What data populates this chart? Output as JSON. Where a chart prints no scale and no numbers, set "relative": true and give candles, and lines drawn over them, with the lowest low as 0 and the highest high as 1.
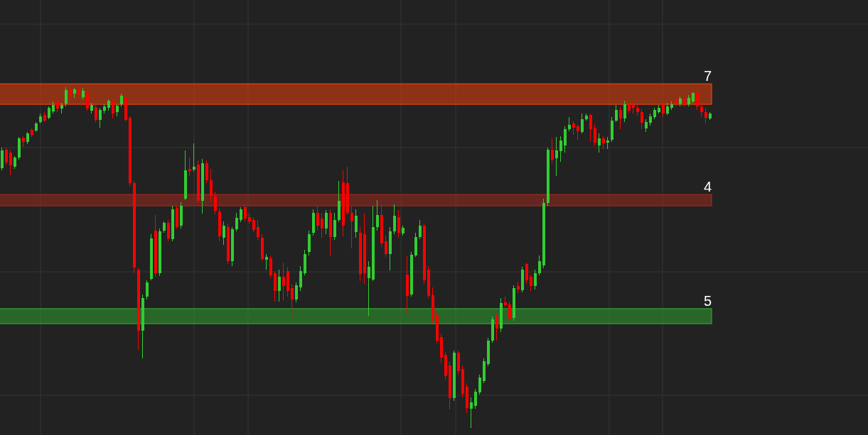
{
  "chart_data": {
    "type": "candlestick",
    "relative": true,
    "grid": true,
    "categories": [
      null,
      null,
      null,
      null,
      null,
      null,
      null,
      null,
      null,
      null,
      null,
      null,
      null,
      null,
      null,
      null,
      null,
      null,
      null,
      null,
      null,
      null,
      null,
      null,
      null,
      null,
      null,
      null,
      null,
      null,
      null,
      null,
      null,
      null,
      null,
      null,
      null,
      null,
      null,
      null,
      null,
      null,
      null,
      null,
      null,
      null,
      null,
      null,
      null,
      null,
      null,
      null,
      null,
      null,
      null,
      null,
      null,
      null,
      null,
      null,
      null,
      null,
      null,
      null,
      null,
      null,
      null,
      null,
      null,
      null,
      null,
      null,
      null,
      null,
      null,
      null,
      null,
      null,
      null,
      null,
      null,
      null,
      null,
      null,
      null,
      null,
      null,
      null,
      null,
      null,
      null,
      null,
      null,
      null,
      null,
      null,
      null,
      null,
      null,
      null,
      null,
      null,
      null,
      null,
      null,
      null,
      null,
      null,
      null,
      null,
      null,
      null,
      null,
      null,
      null,
      null,
      null,
      null,
      null,
      null,
      null,
      null,
      null,
      null,
      null,
      null,
      null,
      null,
      null,
      null,
      null,
      null,
      null,
      null,
      null,
      null,
      null,
      null,
      null,
      null,
      null,
      null,
      null,
      null,
      null,
      null,
      null,
      null,
      null,
      null,
      null,
      null,
      null,
      null,
      null,
      null,
      null,
      null,
      null,
      null,
      null,
      null,
      null,
      null,
      null,
      null,
      null
    ],
    "ohlc": [
      [
        0.763,
        0.823,
        0.756,
        0.815
      ],
      [
        0.817,
        0.823,
        0.773,
        0.779
      ],
      [
        0.808,
        0.815,
        0.742,
        0.771
      ],
      [
        0.767,
        0.798,
        0.76,
        0.794
      ],
      [
        0.794,
        0.854,
        0.788,
        0.85
      ],
      [
        0.852,
        0.856,
        0.825,
        0.84
      ],
      [
        0.84,
        0.869,
        0.833,
        0.865
      ],
      [
        0.875,
        0.879,
        0.854,
        0.86
      ],
      [
        0.873,
        0.898,
        0.869,
        0.894
      ],
      [
        0.898,
        0.923,
        0.894,
        0.915
      ],
      [
        0.919,
        0.927,
        0.898,
        0.902
      ],
      [
        0.91,
        0.944,
        0.906,
        0.94
      ],
      [
        0.929,
        0.958,
        0.923,
        0.948
      ],
      [
        0.958,
        0.965,
        0.927,
        0.938
      ],
      [
        0.938,
        0.954,
        0.923,
        0.948
      ],
      [
        0.952,
        1,
        0.944,
        0.992
      ],
      [
        0.992,
        0.998,
        0.965,
        0.977
      ],
      [
        0.981,
        0.998,
        0.969,
        0.994
      ],
      [
        0.992,
        0.996,
        0.973,
        0.983
      ],
      [
        0.971,
        0.998,
        0.965,
        0.99
      ],
      [
        0.983,
        0.99,
        0.931,
        0.938
      ],
      [
        0.931,
        0.954,
        0.923,
        0.948
      ],
      [
        0.942,
        0.948,
        0.898,
        0.904
      ],
      [
        0.904,
        0.94,
        0.881,
        0.933
      ],
      [
        0.931,
        0.95,
        0.923,
        0.944
      ],
      [
        0.94,
        0.965,
        0.931,
        0.96
      ],
      [
        0.958,
        0.963,
        0.908,
        0.923
      ],
      [
        0.927,
        0.95,
        0.915,
        0.946
      ],
      [
        0.95,
        0.981,
        0.944,
        0.975
      ],
      [
        0.971,
        0.979,
        0.9,
        0.904
      ],
      [
        0.91,
        0.915,
        0.71,
        0.719
      ],
      [
        0.719,
        0.725,
        0.454,
        0.471
      ],
      [
        0.465,
        0.469,
        0.229,
        0.285
      ],
      [
        0.285,
        0.392,
        0.204,
        0.381
      ],
      [
        0.385,
        0.433,
        0.377,
        0.427
      ],
      [
        0.438,
        0.569,
        0.433,
        0.556
      ],
      [
        0.579,
        0.625,
        0.444,
        0.454
      ],
      [
        0.454,
        0.585,
        0.446,
        0.577
      ],
      [
        0.579,
        0.606,
        0.573,
        0.602
      ],
      [
        0.602,
        0.61,
        0.548,
        0.556
      ],
      [
        0.554,
        0.652,
        0.548,
        0.642
      ],
      [
        0.646,
        0.652,
        0.585,
        0.59
      ],
      [
        0.594,
        0.663,
        0.585,
        0.652
      ],
      [
        0.673,
        0.815,
        0.669,
        0.756
      ],
      [
        0.76,
        0.794,
        0.74,
        0.754
      ],
      [
        0.758,
        0.835,
        0.752,
        0.767
      ],
      [
        0.773,
        0.785,
        0.66,
        0.667
      ],
      [
        0.667,
        0.79,
        0.629,
        0.777
      ],
      [
        0.777,
        0.785,
        0.719,
        0.727
      ],
      [
        0.727,
        0.76,
        0.665,
        0.681
      ],
      [
        0.681,
        0.694,
        0.627,
        0.638
      ],
      [
        0.635,
        0.644,
        0.548,
        0.563
      ],
      [
        0.558,
        0.606,
        0.538,
        0.594
      ],
      [
        0.59,
        0.6,
        0.481,
        0.49
      ],
      [
        0.49,
        0.59,
        0.475,
        0.583
      ],
      [
        0.583,
        0.631,
        0.577,
        0.617
      ],
      [
        0.61,
        0.648,
        0.604,
        0.642
      ],
      [
        0.648,
        0.656,
        0.606,
        0.615
      ],
      [
        0.619,
        0.631,
        0.6,
        0.606
      ],
      [
        0.61,
        0.619,
        0.575,
        0.581
      ],
      [
        0.59,
        0.61,
        0.552,
        0.56
      ],
      [
        0.558,
        0.569,
        0.49,
        0.496
      ],
      [
        0.494,
        0.51,
        0.465,
        0.502
      ],
      [
        0.498,
        0.506,
        0.44,
        0.448
      ],
      [
        0.454,
        0.46,
        0.371,
        0.402
      ],
      [
        0.402,
        0.465,
        0.371,
        0.444
      ],
      [
        0.444,
        0.485,
        0.375,
        0.417
      ],
      [
        0.46,
        0.473,
        0.385,
        0.402
      ],
      [
        0.41,
        0.423,
        0.323,
        0.377
      ],
      [
        0.377,
        0.427,
        0.369,
        0.419
      ],
      [
        0.413,
        0.475,
        0.402,
        0.46
      ],
      [
        0.454,
        0.523,
        0.448,
        0.51
      ],
      [
        0.517,
        0.579,
        0.506,
        0.569
      ],
      [
        0.573,
        0.642,
        0.565,
        0.631
      ],
      [
        0.631,
        0.652,
        0.581,
        0.594
      ],
      [
        0.615,
        0.631,
        0.558,
        0.585
      ],
      [
        0.585,
        0.64,
        0.569,
        0.631
      ],
      [
        0.631,
        0.642,
        0.506,
        0.56
      ],
      [
        0.56,
        0.631,
        0.552,
        0.61
      ],
      [
        0.61,
        0.725,
        0.604,
        0.667
      ],
      [
        0.721,
        0.756,
        0.563,
        0.594
      ],
      [
        0.719,
        0.767,
        0.625,
        0.631
      ],
      [
        0.631,
        0.652,
        0.527,
        0.606
      ],
      [
        0.575,
        0.642,
        0.558,
        0.623
      ],
      [
        0.573,
        0.59,
        0.431,
        0.452
      ],
      [
        0.569,
        0.631,
        0.423,
        0.454
      ],
      [
        0.44,
        0.49,
        0.329,
        0.473
      ],
      [
        0.435,
        0.652,
        0.431,
        0.59
      ],
      [
        0.59,
        0.669,
        0.579,
        0.625
      ],
      [
        0.625,
        0.656,
        0.531,
        0.542
      ],
      [
        0.548,
        0.565,
        0.502,
        0.51
      ],
      [
        0.51,
        0.59,
        0.463,
        0.577
      ],
      [
        0.577,
        0.656,
        0.569,
        0.623
      ],
      [
        0.619,
        0.64,
        0.558,
        0.573
      ],
      [
        0.571,
        0.594,
        0.565,
        0.588
      ],
      [
        0.45,
        0.504,
        0.335,
        0.388
      ],
      [
        0.392,
        0.517,
        0.385,
        0.508
      ],
      [
        0.506,
        0.573,
        0.502,
        0.56
      ],
      [
        0.56,
        0.61,
        0.554,
        0.594
      ],
      [
        0.594,
        0.6,
        0.423,
        0.433
      ],
      [
        0.465,
        0.475,
        0.381,
        0.388
      ],
      [
        0.39,
        0.413,
        0.308,
        0.321
      ],
      [
        0.331,
        0.34,
        0.248,
        0.256
      ],
      [
        0.267,
        0.277,
        0.19,
        0.206
      ],
      [
        0.215,
        0.223,
        0.142,
        0.152
      ],
      [
        0.183,
        0.194,
        0.054,
        0.088
      ],
      [
        0.088,
        0.227,
        0.079,
        0.221
      ],
      [
        0.221,
        0.227,
        0.156,
        0.167
      ],
      [
        0.173,
        0.183,
        0.09,
        0.1
      ],
      [
        0.121,
        0.131,
        0.044,
        0.058
      ],
      [
        0.056,
        0.09,
        0,
        0.075
      ],
      [
        0.065,
        0.115,
        0.056,
        0.106
      ],
      [
        0.104,
        0.156,
        0.098,
        0.148
      ],
      [
        0.138,
        0.204,
        0.131,
        0.196
      ],
      [
        0.188,
        0.265,
        0.181,
        0.256
      ],
      [
        0.256,
        0.327,
        0.25,
        0.319
      ],
      [
        0.323,
        0.335,
        0.256,
        0.292
      ],
      [
        0.292,
        0.381,
        0.281,
        0.367
      ],
      [
        0.369,
        0.385,
        0.354,
        0.36
      ],
      [
        0.363,
        0.371,
        0.308,
        0.321
      ],
      [
        0.323,
        0.419,
        0.315,
        0.41
      ],
      [
        0.417,
        0.429,
        0.396,
        0.406
      ],
      [
        0.404,
        0.473,
        0.398,
        0.465
      ],
      [
        0.481,
        0.485,
        0.423,
        0.433
      ],
      [
        0.444,
        0.45,
        0.402,
        0.417
      ],
      [
        0.417,
        0.465,
        0.406,
        0.454
      ],
      [
        0.454,
        0.506,
        0.448,
        0.49
      ],
      [
        0.477,
        0.673,
        0.469,
        0.66
      ],
      [
        0.66,
        0.823,
        0.652,
        0.817
      ],
      [
        0.817,
        0.85,
        0.777,
        0.788
      ],
      [
        0.792,
        0.854,
        0.74,
        0.815
      ],
      [
        0.813,
        0.856,
        0.781,
        0.844
      ],
      [
        0.829,
        0.885,
        0.808,
        0.877
      ],
      [
        0.877,
        0.913,
        0.871,
        0.89
      ],
      [
        0.894,
        0.902,
        0.86,
        0.881
      ],
      [
        0.885,
        0.892,
        0.846,
        0.871
      ],
      [
        0.869,
        0.923,
        0.865,
        0.906
      ],
      [
        0.906,
        0.923,
        0.902,
        0.917
      ],
      [
        0.919,
        0.923,
        0.84,
        0.877
      ],
      [
        0.881,
        0.892,
        0.827,
        0.838
      ],
      [
        0.829,
        0.865,
        0.808,
        0.85
      ],
      [
        0.85,
        0.856,
        0.819,
        0.835
      ],
      [
        0.838,
        0.854,
        0.819,
        0.844
      ],
      [
        0.846,
        0.913,
        0.84,
        0.902
      ],
      [
        0.902,
        0.948,
        0.898,
        0.933
      ],
      [
        0.933,
        0.944,
        0.877,
        0.908
      ],
      [
        0.908,
        0.96,
        0.898,
        0.95
      ],
      [
        0.95,
        0.954,
        0.923,
        0.931
      ],
      [
        0.948,
        0.96,
        0.923,
        0.94
      ],
      [
        0.94,
        0.948,
        0.917,
        0.927
      ],
      [
        0.927,
        0.935,
        0.877,
        0.896
      ],
      [
        0.879,
        0.906,
        0.869,
        0.898
      ],
      [
        0.896,
        0.923,
        0.888,
        0.915
      ],
      [
        0.913,
        0.94,
        0.906,
        0.933
      ],
      [
        0.927,
        0.948,
        0.923,
        0.94
      ],
      [
        0.948,
        0.958,
        0.913,
        0.923
      ],
      [
        0.923,
        0.954,
        0.919,
        0.944
      ],
      [
        0.94,
        0.958,
        0.933,
        0.95
      ],
      [
        0.963,
        0.969,
        0.944,
        0.952
      ],
      [
        0.952,
        0.973,
        0.944,
        0.967
      ],
      [
        0.963,
        0.971,
        0.944,
        0.95
      ],
      [
        0.95,
        0.977,
        0.944,
        0.969
      ],
      [
        0.958,
        0.985,
        0.954,
        0.983
      ],
      [
        0.983,
        0.992,
        0.933,
        0.944
      ],
      [
        0.944,
        0.954,
        0.913,
        0.927
      ],
      [
        0.927,
        0.94,
        0.894,
        0.91
      ],
      [
        0.908,
        0.927,
        0.904,
        0.923
      ]
    ],
    "colors": [
      "#32cd32",
      "#ff0000",
      "#ff0000",
      "#32cd32",
      "#32cd32",
      "#ff0000",
      "#32cd32",
      "#ff0000",
      "#32cd32",
      "#32cd32",
      "#ff0000",
      "#32cd32",
      "#32cd32",
      "#ff0000",
      "#32cd32",
      "#32cd32",
      "#ff0000",
      "#32cd32",
      "#ff0000",
      "#32cd32",
      "#ff0000",
      "#32cd32",
      "#ff0000",
      "#32cd32",
      "#32cd32",
      "#32cd32",
      "#ff0000",
      "#32cd32",
      "#32cd32",
      "#ff0000",
      "#ff0000",
      "#ff0000",
      "#ff0000",
      "#32cd32",
      "#32cd32",
      "#32cd32",
      "#ff0000",
      "#32cd32",
      "#32cd32",
      "#ff0000",
      "#32cd32",
      "#ff0000",
      "#32cd32",
      "#32cd32",
      "#ff0000",
      "#32cd32",
      "#ff0000",
      "#32cd32",
      "#ff0000",
      "#ff0000",
      "#ff0000",
      "#ff0000",
      "#32cd32",
      "#ff0000",
      "#32cd32",
      "#32cd32",
      "#32cd32",
      "#ff0000",
      "#ff0000",
      "#ff0000",
      "#ff0000",
      "#ff0000",
      "#32cd32",
      "#ff0000",
      "#ff0000",
      "#32cd32",
      "#ff0000",
      "#ff0000",
      "#ff0000",
      "#32cd32",
      "#32cd32",
      "#32cd32",
      "#32cd32",
      "#32cd32",
      "#ff0000",
      "#ff0000",
      "#32cd32",
      "#ff0000",
      "#32cd32",
      "#32cd32",
      "#ff0000",
      "#ff0000",
      "#ff0000",
      "#32cd32",
      "#ff0000",
      "#ff0000",
      "#32cd32",
      "#32cd32",
      "#32cd32",
      "#ff0000",
      "#ff0000",
      "#32cd32",
      "#32cd32",
      "#ff0000",
      "#32cd32",
      "#ff0000",
      "#32cd32",
      "#32cd32",
      "#32cd32",
      "#ff0000",
      "#ff0000",
      "#ff0000",
      "#ff0000",
      "#ff0000",
      "#ff0000",
      "#ff0000",
      "#32cd32",
      "#ff0000",
      "#ff0000",
      "#ff0000",
      "#32cd32",
      "#32cd32",
      "#32cd32",
      "#32cd32",
      "#32cd32",
      "#32cd32",
      "#ff0000",
      "#32cd32",
      "#ff0000",
      "#ff0000",
      "#32cd32",
      "#ff0000",
      "#32cd32",
      "#ff0000",
      "#ff0000",
      "#32cd32",
      "#32cd32",
      "#32cd32",
      "#32cd32",
      "#ff0000",
      "#32cd32",
      "#32cd32",
      "#32cd32",
      "#32cd32",
      "#ff0000",
      "#ff0000",
      "#32cd32",
      "#32cd32",
      "#ff0000",
      "#ff0000",
      "#32cd32",
      "#ff0000",
      "#32cd32",
      "#32cd32",
      "#32cd32",
      "#ff0000",
      "#32cd32",
      "#ff0000",
      "#ff0000",
      "#ff0000",
      "#ff0000",
      "#32cd32",
      "#32cd32",
      "#32cd32",
      "#32cd32",
      "#ff0000",
      "#32cd32",
      "#32cd32",
      "#ff0000",
      "#32cd32",
      "#ff0000",
      "#32cd32",
      "#32cd32",
      "#ff0000",
      "#ff0000",
      "#ff0000",
      "#32cd32"
    ],
    "bands": [
      {
        "axis": "y",
        "from": 0.95,
        "to": 1.01,
        "label": "7",
        "color": "#e8400c"
      },
      {
        "axis": "y",
        "from": 0.652,
        "to": 0.685,
        "label": "4",
        "color": "#9a2a1e"
      },
      {
        "axis": "y",
        "from": 0.306,
        "to": 0.35,
        "label": "5",
        "color": "#30a030"
      }
    ]
  }
}
